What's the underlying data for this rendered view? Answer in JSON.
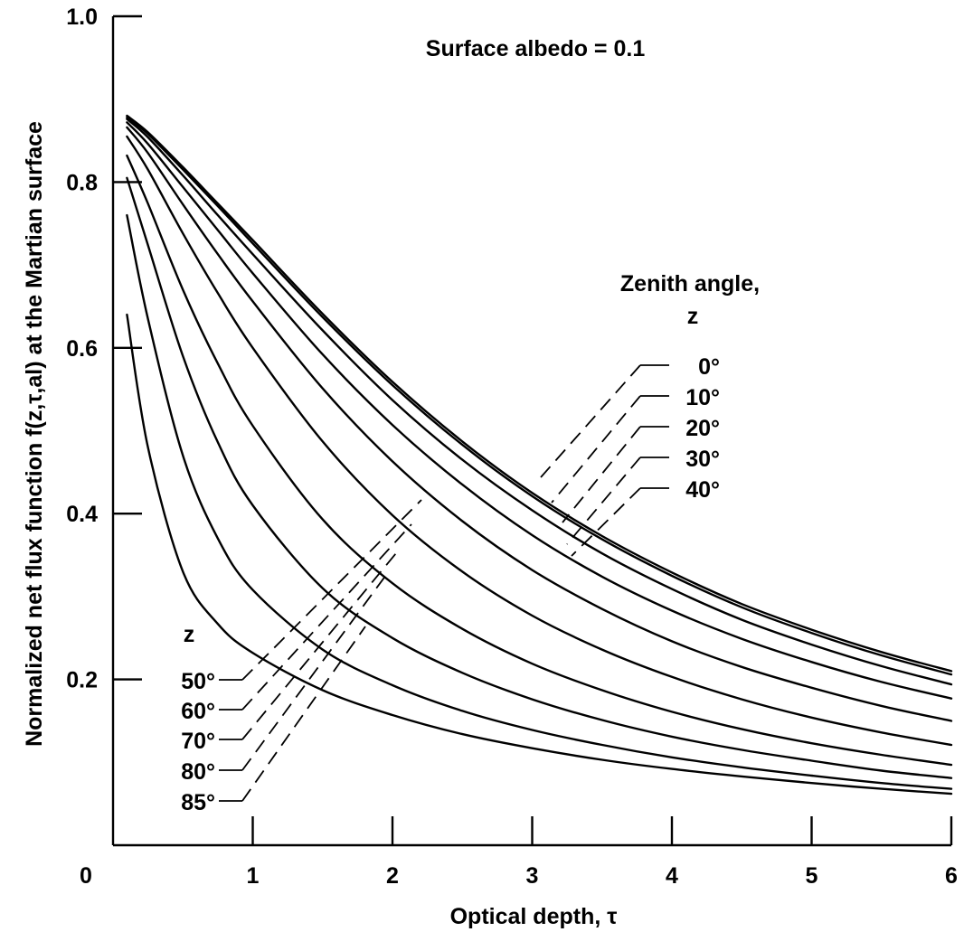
{
  "chart_data": {
    "type": "line",
    "title": "Surface albedo = 0.1",
    "xlabel": "Optical depth, τ",
    "ylabel": "Normalized net flux function f(z,τ,al) at the Martian surface",
    "xlim": [
      0,
      6
    ],
    "ylim": [
      0,
      1.0
    ],
    "x_ticks": [
      "0",
      "1",
      "2",
      "3",
      "4",
      "5",
      "6"
    ],
    "y_ticks": [
      "0.2",
      "0.4",
      "0.6",
      "0.8",
      "1.0"
    ],
    "legend_title": [
      "Zenith angle,",
      "z"
    ],
    "legend_title_lower": "z",
    "grid": false,
    "x": [
      0.1,
      0.25,
      0.5,
      0.75,
      1.0,
      1.5,
      2.0,
      2.5,
      3.0,
      3.5,
      4.0,
      4.5,
      5.0,
      5.5,
      6.0
    ],
    "series": [
      {
        "name": "0°",
        "values": [
          0.88,
          0.86,
          0.818,
          0.774,
          0.73,
          0.641,
          0.559,
          0.487,
          0.425,
          0.373,
          0.329,
          0.291,
          0.26,
          0.233,
          0.21
        ]
      },
      {
        "name": "10°",
        "values": [
          0.878,
          0.858,
          0.815,
          0.771,
          0.726,
          0.637,
          0.555,
          0.483,
          0.421,
          0.369,
          0.325,
          0.287,
          0.256,
          0.229,
          0.206
        ]
      },
      {
        "name": "20°",
        "values": [
          0.876,
          0.854,
          0.808,
          0.76,
          0.713,
          0.621,
          0.537,
          0.465,
          0.404,
          0.352,
          0.309,
          0.272,
          0.242,
          0.216,
          0.194
        ]
      },
      {
        "name": "30°",
        "values": [
          0.872,
          0.846,
          0.794,
          0.742,
          0.69,
          0.592,
          0.507,
          0.435,
          0.374,
          0.324,
          0.283,
          0.249,
          0.221,
          0.197,
          0.177
        ]
      },
      {
        "name": "40°",
        "values": [
          0.866,
          0.835,
          0.773,
          0.713,
          0.656,
          0.551,
          0.463,
          0.391,
          0.332,
          0.285,
          0.246,
          0.215,
          0.19,
          0.168,
          0.15
        ]
      },
      {
        "name": "50°",
        "values": [
          0.855,
          0.815,
          0.738,
          0.666,
          0.6,
          0.487,
          0.398,
          0.33,
          0.277,
          0.236,
          0.203,
          0.176,
          0.154,
          0.136,
          0.121
        ]
      },
      {
        "name": "60°",
        "values": [
          0.832,
          0.774,
          0.67,
          0.581,
          0.506,
          0.393,
          0.316,
          0.261,
          0.219,
          0.187,
          0.161,
          0.14,
          0.123,
          0.109,
          0.097
        ]
      },
      {
        "name": "70°",
        "values": [
          0.805,
          0.724,
          0.59,
          0.486,
          0.41,
          0.31,
          0.25,
          0.208,
          0.176,
          0.151,
          0.131,
          0.115,
          0.102,
          0.09,
          0.081
        ]
      },
      {
        "name": "80°",
        "values": [
          0.76,
          0.635,
          0.47,
          0.37,
          0.308,
          0.236,
          0.193,
          0.162,
          0.139,
          0.121,
          0.106,
          0.094,
          0.084,
          0.075,
          0.068
        ]
      },
      {
        "name": "85°",
        "values": [
          0.64,
          0.48,
          0.33,
          0.267,
          0.232,
          0.187,
          0.157,
          0.134,
          0.117,
          0.103,
          0.092,
          0.083,
          0.075,
          0.068,
          0.062
        ]
      }
    ]
  }
}
